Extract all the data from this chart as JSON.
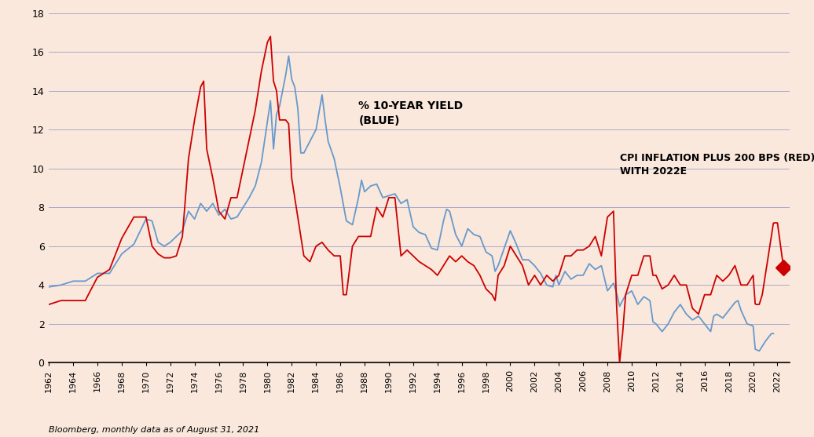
{
  "footnote": "Bloomberg, monthly data as of August 31, 2021",
  "background_color": "#FAE8DC",
  "blue_color": "#6699CC",
  "red_color": "#CC0000",
  "ylim": [
    0,
    18
  ],
  "yticks": [
    0,
    2,
    4,
    6,
    8,
    10,
    12,
    14,
    16,
    18
  ],
  "annotation_yield": "% 10-YEAR YIELD\n(BLUE)",
  "annotation_cpi": "CPI INFLATION PLUS 200 BPS (RED)\nWITH 2022E",
  "diamond_value": 4.9,
  "diamond_year": 2022.5
}
